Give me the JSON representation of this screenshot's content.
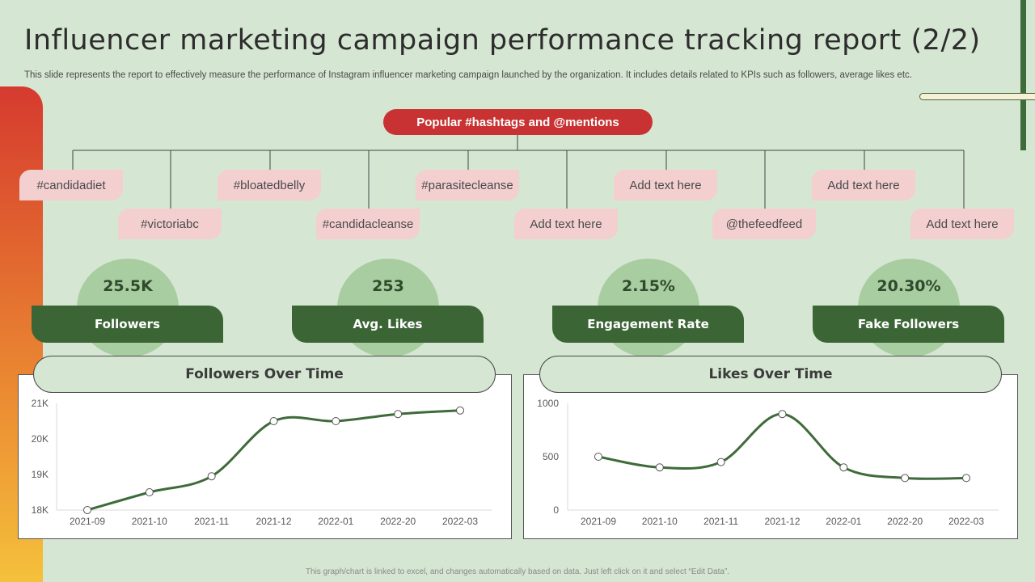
{
  "slide": {
    "title": "Influencer marketing campaign performance tracking report (2/2)",
    "subtitle": "This slide represents the report to effectively  measure the performance of Instagram influencer marketing campaign launched by the organization. It includes details related to KPIs such as followers, average likes etc.",
    "footer": "This graph/chart is linked to excel, and changes automatically based on data. Just left click on it and select “Edit Data”."
  },
  "hashtags": {
    "header": "Popular #hashtags and @mentions",
    "items": [
      "#candidadiet",
      "#victoriabc",
      "#bloatedbelly",
      "#candidacleanse",
      "#parasitecleanse",
      "Add text here",
      "Add text here",
      "@thefeedfeed",
      "Add text here",
      "Add text here"
    ]
  },
  "kpis": [
    {
      "value": "25.5K",
      "label": "Followers"
    },
    {
      "value": "253",
      "label": "Avg. Likes"
    },
    {
      "value": "2.15%",
      "label": "Engagement Rate"
    },
    {
      "value": "20.30%",
      "label": "Fake Followers"
    }
  ],
  "colors": {
    "background": "#d5e6d2",
    "accent_green": "#3c6536",
    "line_green": "#3f6b3a",
    "accent_red": "#c83232",
    "tag_pink": "#f3cfd0",
    "kpi_circle": "#a7cda0"
  },
  "chart_data": [
    {
      "type": "line",
      "title": "Followers Over Time",
      "categories": [
        "2021-09",
        "2021-10",
        "2021-11",
        "2021-12",
        "2022-01",
        "2022-20",
        "2022-03"
      ],
      "values": [
        18000,
        18500,
        18950,
        20500,
        20500,
        20700,
        20800
      ],
      "ylim": [
        18000,
        21000
      ],
      "yticks": [
        18000,
        19000,
        20000,
        21000
      ],
      "ytick_labels": [
        "18K",
        "19K",
        "20K",
        "21K"
      ],
      "xlabel": "",
      "ylabel": "",
      "grid": false,
      "smooth": true
    },
    {
      "type": "line",
      "title": "Likes Over Time",
      "categories": [
        "2021-09",
        "2021-10",
        "2021-11",
        "2021-12",
        "2022-01",
        "2022-20",
        "2022-03"
      ],
      "values": [
        500,
        400,
        450,
        900,
        400,
        300,
        300
      ],
      "ylim": [
        0,
        1000
      ],
      "yticks": [
        0,
        500,
        1000
      ],
      "ytick_labels": [
        "0",
        "500",
        "1000"
      ],
      "xlabel": "",
      "ylabel": "",
      "grid": false,
      "smooth": true
    }
  ]
}
